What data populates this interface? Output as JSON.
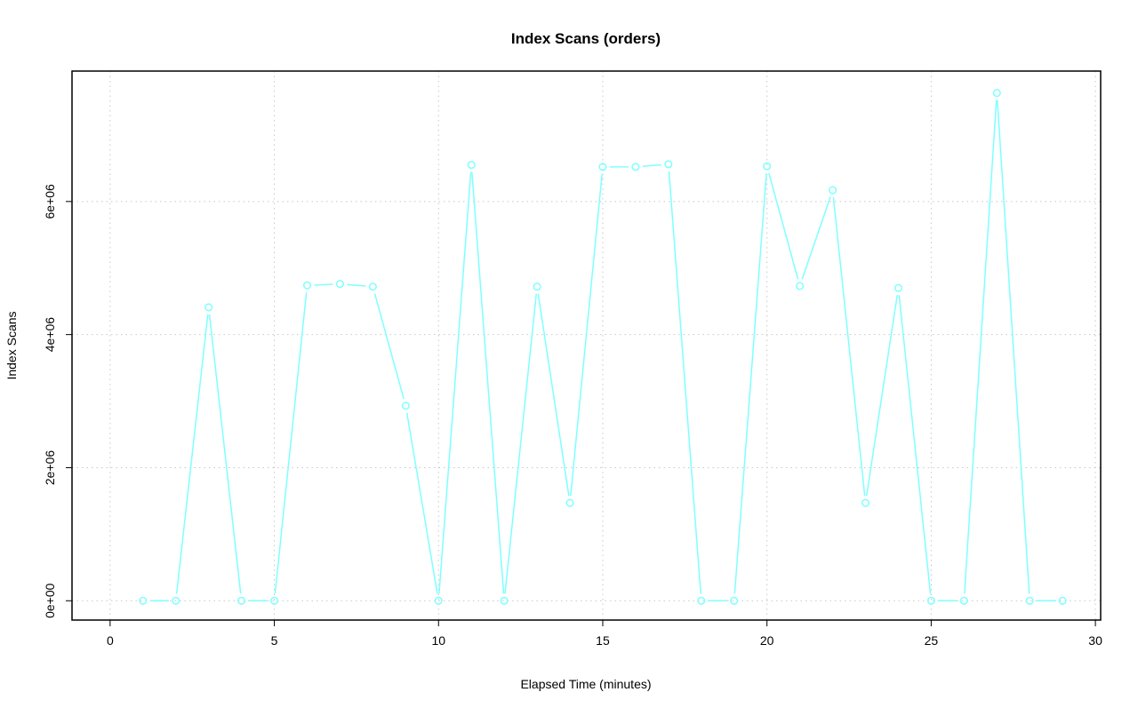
{
  "chart_data": {
    "type": "line",
    "title": "Index Scans (orders)",
    "xlabel": "Elapsed Time (minutes)",
    "ylabel": "Index Scans",
    "x": [
      1,
      2,
      3,
      4,
      5,
      6,
      7,
      8,
      9,
      10,
      11,
      12,
      13,
      14,
      15,
      16,
      17,
      18,
      19,
      20,
      21,
      22,
      23,
      24,
      25,
      26,
      27,
      28,
      29
    ],
    "series": [
      {
        "name": "Index Scans",
        "color": "#7fffff",
        "values": [
          0,
          0,
          4410000,
          0,
          0,
          4740000,
          4760000,
          4720000,
          2930000,
          0,
          6550000,
          0,
          4720000,
          1470000,
          6520000,
          6520000,
          6560000,
          0,
          0,
          6530000,
          4730000,
          6170000,
          1470000,
          4700000,
          0,
          0,
          7630000,
          0,
          0
        ]
      }
    ],
    "xlim": [
      -1.16,
      30.16
    ],
    "ylim": [
      -290000,
      7960000
    ],
    "xticks": [
      0,
      5,
      10,
      15,
      20,
      25,
      30
    ],
    "xtick_labels": [
      "0",
      "5",
      "10",
      "15",
      "20",
      "25",
      "30"
    ],
    "yticks": [
      0,
      2000000,
      4000000,
      6000000
    ],
    "ytick_labels": [
      "0e+00",
      "2e+06",
      "4e+06",
      "6e+06"
    ],
    "grid": true
  }
}
